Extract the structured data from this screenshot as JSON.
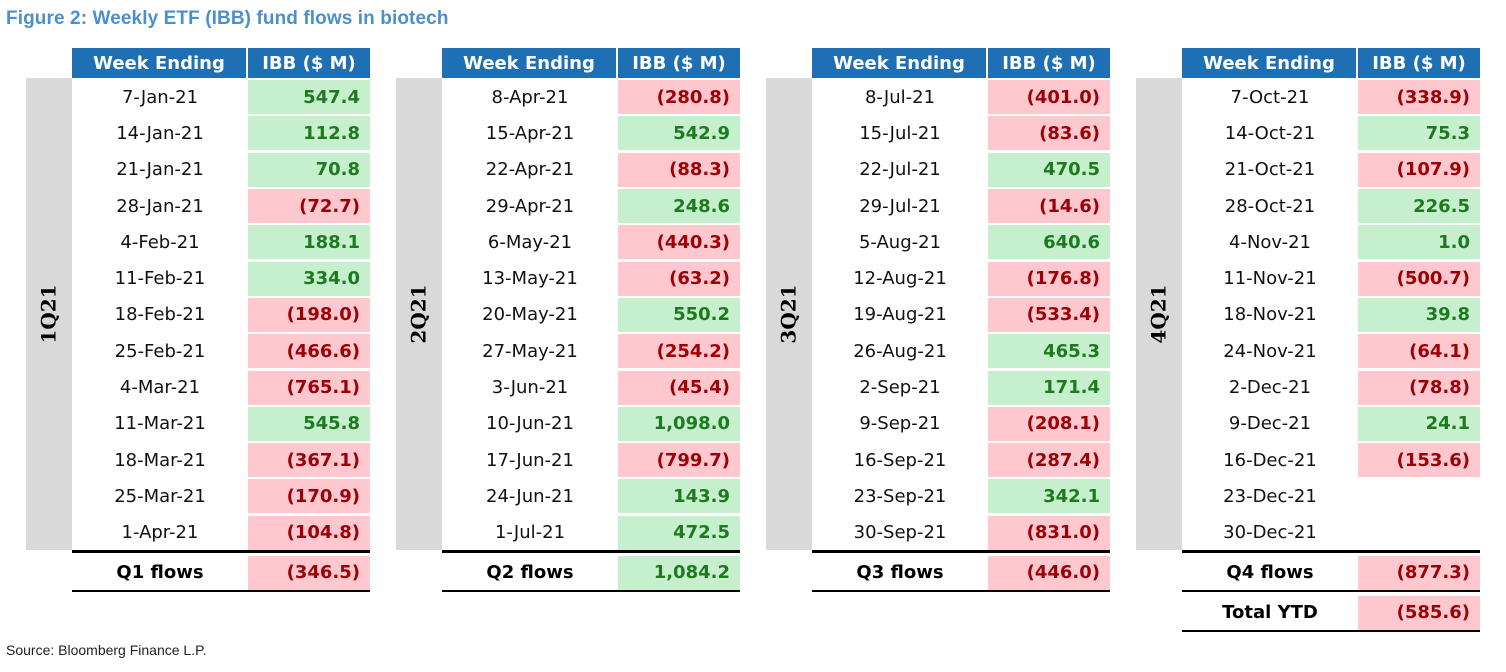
{
  "title": "Figure 2: Weekly ETF (IBB) fund flows in biotech",
  "source": "Source: Bloomberg Finance L.P.",
  "colors": {
    "header": "#1f6fb5",
    "positive_fill": "#c6efce",
    "positive_text": "#1e7a1e",
    "negative_fill": "#ffc7ce",
    "negative_text": "#9c0006",
    "title": "#4a8fd0"
  },
  "headers": {
    "week": "Week Ending",
    "value": "IBB ($ M)"
  },
  "quarters": [
    {
      "label": "1Q21",
      "rows": [
        {
          "week": "7-Jan-21",
          "value": "547.4",
          "sign": "pos"
        },
        {
          "week": "14-Jan-21",
          "value": "112.8",
          "sign": "pos"
        },
        {
          "week": "21-Jan-21",
          "value": "70.8",
          "sign": "pos"
        },
        {
          "week": "28-Jan-21",
          "value": "(72.7)",
          "sign": "neg"
        },
        {
          "week": "4-Feb-21",
          "value": "188.1",
          "sign": "pos"
        },
        {
          "week": "11-Feb-21",
          "value": "334.0",
          "sign": "pos"
        },
        {
          "week": "18-Feb-21",
          "value": "(198.0)",
          "sign": "neg"
        },
        {
          "week": "25-Feb-21",
          "value": "(466.6)",
          "sign": "neg"
        },
        {
          "week": "4-Mar-21",
          "value": "(765.1)",
          "sign": "neg"
        },
        {
          "week": "11-Mar-21",
          "value": "545.8",
          "sign": "pos"
        },
        {
          "week": "18-Mar-21",
          "value": "(367.1)",
          "sign": "neg"
        },
        {
          "week": "25-Mar-21",
          "value": "(170.9)",
          "sign": "neg"
        },
        {
          "week": "1-Apr-21",
          "value": "(104.8)",
          "sign": "neg"
        }
      ],
      "summary": {
        "label": "Q1 flows",
        "value": "(346.5)",
        "sign": "neg"
      }
    },
    {
      "label": "2Q21",
      "rows": [
        {
          "week": "8-Apr-21",
          "value": "(280.8)",
          "sign": "neg"
        },
        {
          "week": "15-Apr-21",
          "value": "542.9",
          "sign": "pos"
        },
        {
          "week": "22-Apr-21",
          "value": "(88.3)",
          "sign": "neg"
        },
        {
          "week": "29-Apr-21",
          "value": "248.6",
          "sign": "pos"
        },
        {
          "week": "6-May-21",
          "value": "(440.3)",
          "sign": "neg"
        },
        {
          "week": "13-May-21",
          "value": "(63.2)",
          "sign": "neg"
        },
        {
          "week": "20-May-21",
          "value": "550.2",
          "sign": "pos"
        },
        {
          "week": "27-May-21",
          "value": "(254.2)",
          "sign": "neg"
        },
        {
          "week": "3-Jun-21",
          "value": "(45.4)",
          "sign": "neg"
        },
        {
          "week": "10-Jun-21",
          "value": "1,098.0",
          "sign": "pos"
        },
        {
          "week": "17-Jun-21",
          "value": "(799.7)",
          "sign": "neg"
        },
        {
          "week": "24-Jun-21",
          "value": "143.9",
          "sign": "pos"
        },
        {
          "week": "1-Jul-21",
          "value": "472.5",
          "sign": "pos"
        }
      ],
      "summary": {
        "label": "Q2 flows",
        "value": "1,084.2",
        "sign": "pos"
      }
    },
    {
      "label": "3Q21",
      "rows": [
        {
          "week": "8-Jul-21",
          "value": "(401.0)",
          "sign": "neg"
        },
        {
          "week": "15-Jul-21",
          "value": "(83.6)",
          "sign": "neg"
        },
        {
          "week": "22-Jul-21",
          "value": "470.5",
          "sign": "pos"
        },
        {
          "week": "29-Jul-21",
          "value": "(14.6)",
          "sign": "neg"
        },
        {
          "week": "5-Aug-21",
          "value": "640.6",
          "sign": "pos"
        },
        {
          "week": "12-Aug-21",
          "value": "(176.8)",
          "sign": "neg"
        },
        {
          "week": "19-Aug-21",
          "value": "(533.4)",
          "sign": "neg"
        },
        {
          "week": "26-Aug-21",
          "value": "465.3",
          "sign": "pos"
        },
        {
          "week": "2-Sep-21",
          "value": "171.4",
          "sign": "pos"
        },
        {
          "week": "9-Sep-21",
          "value": "(208.1)",
          "sign": "neg"
        },
        {
          "week": "16-Sep-21",
          "value": "(287.4)",
          "sign": "neg"
        },
        {
          "week": "23-Sep-21",
          "value": "342.1",
          "sign": "pos"
        },
        {
          "week": "30-Sep-21",
          "value": "(831.0)",
          "sign": "neg"
        }
      ],
      "summary": {
        "label": "Q3 flows",
        "value": "(446.0)",
        "sign": "neg"
      }
    },
    {
      "label": "4Q21",
      "rows": [
        {
          "week": "7-Oct-21",
          "value": "(338.9)",
          "sign": "neg"
        },
        {
          "week": "14-Oct-21",
          "value": "75.3",
          "sign": "pos"
        },
        {
          "week": "21-Oct-21",
          "value": "(107.9)",
          "sign": "neg"
        },
        {
          "week": "28-Oct-21",
          "value": "226.5",
          "sign": "pos"
        },
        {
          "week": "4-Nov-21",
          "value": "1.0",
          "sign": "pos"
        },
        {
          "week": "11-Nov-21",
          "value": "(500.7)",
          "sign": "neg"
        },
        {
          "week": "18-Nov-21",
          "value": "39.8",
          "sign": "pos"
        },
        {
          "week": "24-Nov-21",
          "value": "(64.1)",
          "sign": "neg"
        },
        {
          "week": "2-Dec-21",
          "value": "(78.8)",
          "sign": "neg"
        },
        {
          "week": "9-Dec-21",
          "value": "24.1",
          "sign": "pos"
        },
        {
          "week": "16-Dec-21",
          "value": "(153.6)",
          "sign": "neg"
        },
        {
          "week": "23-Dec-21",
          "value": "",
          "sign": "nil"
        },
        {
          "week": "30-Dec-21",
          "value": "",
          "sign": "nil"
        }
      ],
      "summary": {
        "label": "Q4 flows",
        "value": "(877.3)",
        "sign": "neg"
      },
      "total": {
        "label": "Total YTD",
        "value": "(585.6)",
        "sign": "neg"
      }
    }
  ]
}
